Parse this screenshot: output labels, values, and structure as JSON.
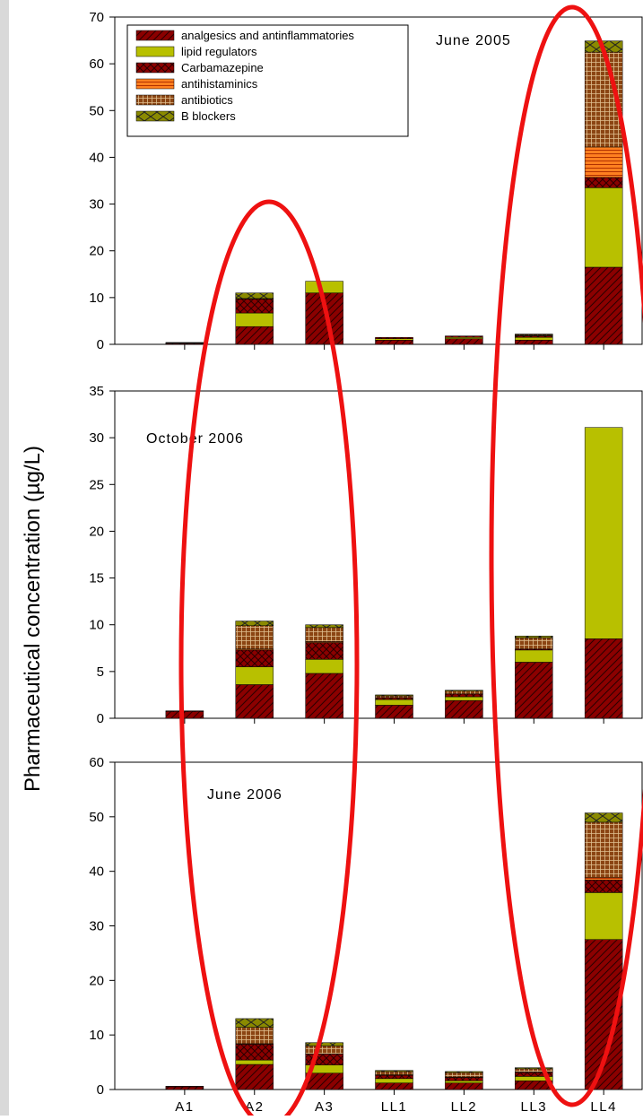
{
  "ylabel": "Pharmaceutical concentration (µg/L)",
  "legend": [
    {
      "key": "analgesics",
      "label": "analgesics and antinflammatories",
      "fill": "#8b0000",
      "pattern": "diag"
    },
    {
      "key": "lipid",
      "label": "lipid regulators",
      "fill": "#b8c000",
      "pattern": "none"
    },
    {
      "key": "carba",
      "label": "Carbamazepine",
      "fill": "#8b0000",
      "pattern": "cross"
    },
    {
      "key": "antihist",
      "label": "antihistaminics",
      "fill": "#ff8020",
      "pattern": "hlines"
    },
    {
      "key": "antibio",
      "label": "antibiotics",
      "fill": "#8b4513",
      "pattern": "grid"
    },
    {
      "key": "bblock",
      "label": "B blockers",
      "fill": "#8a8a00",
      "pattern": "xcross"
    }
  ],
  "colors": {
    "ellipse": "#ee1111"
  },
  "chart_data": [
    {
      "type": "bar",
      "stacked": true,
      "title": "June 2005",
      "categories": [
        "A1",
        "A2",
        "A3",
        "LL1",
        "LL2",
        "LL3",
        "LL4"
      ],
      "ylim": [
        0,
        70
      ],
      "yticks": [
        0,
        10,
        20,
        30,
        40,
        50,
        60,
        70
      ],
      "series": [
        {
          "name": "analgesics and antinflammatories",
          "values": [
            0.2,
            3.8,
            11.0,
            0.9,
            1.2,
            0.9,
            16.5
          ]
        },
        {
          "name": "lipid regulators",
          "values": [
            0.1,
            2.9,
            2.5,
            0.3,
            0.3,
            0.6,
            17.0
          ]
        },
        {
          "name": "Carbamazepine",
          "values": [
            0.1,
            3.0,
            0.0,
            0.3,
            0.3,
            0.3,
            2.2
          ]
        },
        {
          "name": "antihistaminics",
          "values": [
            0.0,
            0.1,
            0.0,
            0.0,
            0.0,
            0.1,
            6.5
          ]
        },
        {
          "name": "antibiotics",
          "values": [
            0.0,
            0.0,
            0.0,
            0.0,
            0.0,
            0.2,
            20.3
          ]
        },
        {
          "name": "B blockers",
          "values": [
            0.0,
            1.2,
            0.0,
            0.0,
            0.0,
            0.1,
            2.4
          ]
        }
      ]
    },
    {
      "type": "bar",
      "stacked": true,
      "title": "October 2006",
      "categories": [
        "A1",
        "A2",
        "A3",
        "LL1",
        "LL2",
        "LL3",
        "LL4"
      ],
      "ylim": [
        0,
        35
      ],
      "yticks": [
        0,
        5,
        10,
        15,
        20,
        25,
        30,
        35
      ],
      "series": [
        {
          "name": "analgesics and antinflammatories",
          "values": [
            0.7,
            3.6,
            4.8,
            1.4,
            1.9,
            6.0,
            8.5
          ]
        },
        {
          "name": "lipid regulators",
          "values": [
            0.0,
            1.9,
            1.5,
            0.6,
            0.4,
            1.3,
            22.6
          ]
        },
        {
          "name": "Carbamazepine",
          "values": [
            0.1,
            1.8,
            1.8,
            0.2,
            0.3,
            0.1,
            0.0
          ]
        },
        {
          "name": "antihistaminics",
          "values": [
            0.0,
            0.1,
            0.1,
            0.0,
            0.0,
            0.0,
            0.0
          ]
        },
        {
          "name": "antibiotics",
          "values": [
            0.0,
            2.5,
            1.5,
            0.2,
            0.3,
            1.2,
            0.0
          ]
        },
        {
          "name": "B blockers",
          "values": [
            0.0,
            0.5,
            0.3,
            0.1,
            0.1,
            0.2,
            0.0
          ]
        }
      ]
    },
    {
      "type": "bar",
      "stacked": true,
      "title": "June 2006",
      "categories": [
        "A1",
        "A2",
        "A3",
        "LL1",
        "LL2",
        "LL3",
        "LL4"
      ],
      "ylim": [
        0,
        60
      ],
      "yticks": [
        0,
        10,
        20,
        30,
        40,
        50,
        60
      ],
      "series": [
        {
          "name": "analgesics and antinflammatories",
          "values": [
            0.5,
            4.6,
            3.0,
            1.2,
            1.2,
            1.6,
            27.5
          ]
        },
        {
          "name": "lipid regulators",
          "values": [
            0.0,
            0.8,
            1.5,
            0.8,
            0.4,
            0.8,
            8.6
          ]
        },
        {
          "name": "Carbamazepine",
          "values": [
            0.1,
            2.9,
            2.0,
            0.6,
            0.6,
            0.7,
            2.3
          ]
        },
        {
          "name": "antihistaminics",
          "values": [
            0.0,
            0.1,
            0.0,
            0.1,
            0.1,
            0.1,
            0.5
          ]
        },
        {
          "name": "antibiotics",
          "values": [
            0.0,
            3.0,
            1.5,
            0.6,
            0.8,
            0.6,
            10.1
          ]
        },
        {
          "name": "B blockers",
          "values": [
            0.0,
            1.6,
            0.6,
            0.2,
            0.2,
            0.2,
            1.7
          ]
        }
      ]
    }
  ]
}
